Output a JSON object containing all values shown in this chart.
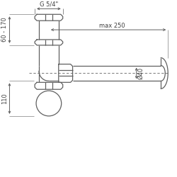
{
  "bg_color": "#ffffff",
  "line_color": "#606060",
  "dim_color": "#606060",
  "text_color": "#404040",
  "label_g54": "G 5/4\"",
  "label_max250": "max 250",
  "label_d40": "Ø40",
  "label_60_170": "60 - 170",
  "label_110": "110",
  "figsize": [
    2.5,
    2.5
  ],
  "dpi": 100
}
